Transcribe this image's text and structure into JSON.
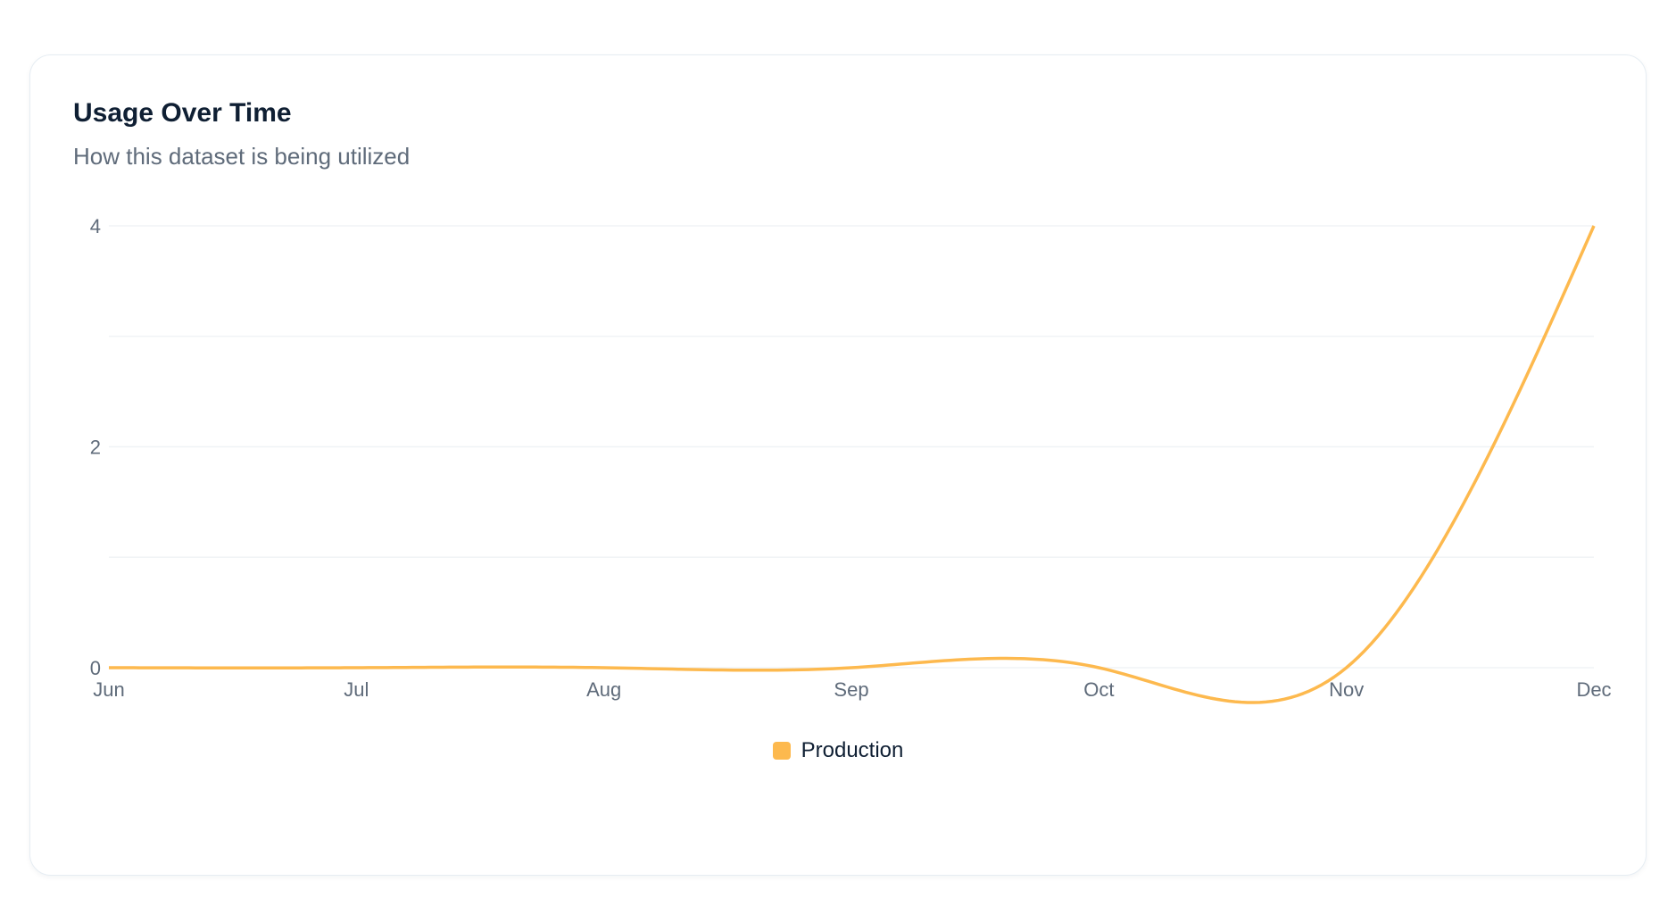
{
  "card": {
    "title": "Usage Over Time",
    "subtitle": "How this dataset is being utilized"
  },
  "chart_data": {
    "type": "line",
    "title": "Usage Over Time",
    "subtitle": "How this dataset is being utilized",
    "categories": [
      "Jun",
      "Jul",
      "Aug",
      "Sep",
      "Oct",
      "Nov",
      "Dec"
    ],
    "series": [
      {
        "name": "Production",
        "values": [
          0,
          0,
          0,
          0,
          0,
          0,
          4
        ],
        "color": "#fdb94e"
      }
    ],
    "ylim": [
      0,
      4
    ],
    "yticks": [
      0,
      2,
      4
    ],
    "gridlines": [
      0,
      1,
      2,
      3,
      4
    ],
    "grid": true,
    "interpolation": "natural-spline",
    "legend": "bottom-center"
  }
}
